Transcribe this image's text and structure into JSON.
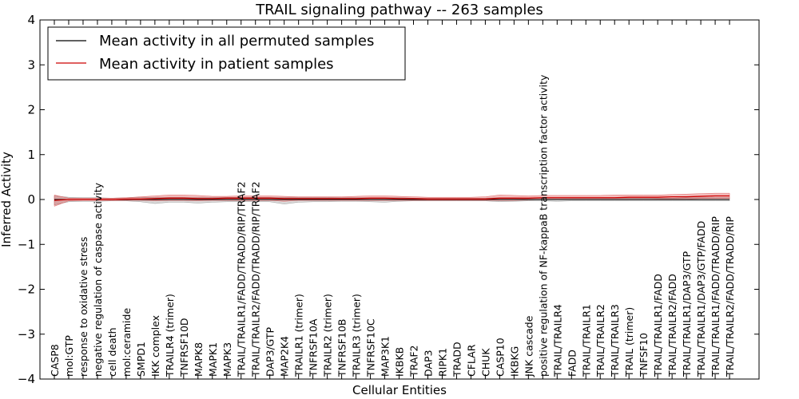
{
  "chart_data": {
    "type": "line",
    "title": "TRAIL signaling pathway -- 263 samples",
    "xlabel": "Cellular Entities",
    "ylabel": "Inferred Activity",
    "ylim": [
      -4,
      4
    ],
    "yticks": [
      -4,
      -3,
      -2,
      -1,
      0,
      1,
      2,
      3,
      4
    ],
    "ytick_labels": [
      "−4",
      "−3",
      "−2",
      "−1",
      "0",
      "1",
      "2",
      "3",
      "4"
    ],
    "grid": false,
    "legend_position": "top-left",
    "categories": [
      "CASP8",
      "mol:GTP",
      "response to oxidative stress",
      "negative regulation of caspase activity",
      "cell death",
      "mol:ceramide",
      "SMPD1",
      "IKK complex",
      "TRAILR4 (trimer)",
      "TNFRSF10D",
      "MAPK8",
      "MAPK1",
      "MAPK3",
      "TRAIL/TRAILR1/FADD/TRADD/RIP/TRAF2",
      "TRAIL/TRAILR2/FADD/TRADD/RIP/TRAF2",
      "DAP3/GTP",
      "MAP2K4",
      "TRAILR1 (trimer)",
      "TNFRSF10A",
      "TRAILR2 (trimer)",
      "TNFRSF10B",
      "TRAILR3 (trimer)",
      "TNFRSF10C",
      "MAP3K1",
      "IKBKB",
      "TRAF2",
      "DAP3",
      "RIPK1",
      "TRADD",
      "CFLAR",
      "CHUK",
      "CASP10",
      "IKBKG",
      "JNK cascade",
      "positive regulation of NF-kappaB transcription factor activity",
      "TRAIL/TRAILR4",
      "FADD",
      "TRAIL/TRAILR1",
      "TRAIL/TRAILR2",
      "TRAIL/TRAILR3",
      "TRAIL (trimer)",
      "TNFSF10",
      "TRAIL/TRAILR1/FADD",
      "TRAIL/TRAILR2/FADD",
      "TRAIL/TRAILR1/DAP3/GTP",
      "TRAIL/TRAILR1/DAP3/GTP/FADD",
      "TRAIL/TRAILR1/FADD/TRADD/RIP",
      "TRAIL/TRAILR2/FADD/TRADD/RIP"
    ],
    "series": [
      {
        "name": "Mean activity in all permuted samples",
        "color": "#000000",
        "values": [
          0,
          0,
          0,
          0,
          0,
          0,
          0,
          0,
          0,
          0,
          0,
          0,
          0,
          0,
          0,
          0,
          0,
          0,
          0,
          0,
          0,
          0,
          0,
          0,
          0,
          0,
          0,
          0,
          0,
          0,
          0,
          0,
          0,
          0,
          0,
          0,
          0,
          0,
          0,
          0,
          0,
          0,
          0,
          0,
          0,
          0,
          0,
          0
        ],
        "band_lower": [
          -0.12,
          -0.05,
          -0.04,
          -0.04,
          -0.03,
          -0.03,
          -0.05,
          -0.09,
          -0.06,
          -0.06,
          -0.08,
          -0.06,
          -0.05,
          -0.05,
          -0.05,
          -0.05,
          -0.1,
          -0.06,
          -0.05,
          -0.05,
          -0.04,
          -0.04,
          -0.05,
          -0.06,
          -0.04,
          -0.03,
          -0.03,
          -0.03,
          -0.03,
          -0.03,
          -0.03,
          -0.05,
          -0.04,
          -0.03,
          -0.03,
          -0.04,
          -0.03,
          -0.03,
          -0.03,
          -0.03,
          -0.03,
          -0.03,
          -0.03,
          -0.03,
          -0.03,
          -0.03,
          -0.03,
          -0.03
        ],
        "band_upper": [
          0.08,
          0.05,
          0.04,
          0.04,
          0.03,
          0.04,
          0.05,
          0.05,
          0.05,
          0.05,
          0.05,
          0.05,
          0.05,
          0.05,
          0.05,
          0.05,
          0.05,
          0.05,
          0.05,
          0.05,
          0.04,
          0.04,
          0.04,
          0.04,
          0.04,
          0.03,
          0.03,
          0.03,
          0.03,
          0.03,
          0.03,
          0.04,
          0.04,
          0.03,
          0.03,
          0.04,
          0.03,
          0.03,
          0.03,
          0.03,
          0.03,
          0.03,
          0.03,
          0.03,
          0.04,
          0.04,
          0.04,
          0.04
        ]
      },
      {
        "name": "Mean activity in patient samples",
        "color": "#cc0000",
        "values": [
          -0.02,
          0,
          0,
          0,
          0,
          0.01,
          0.01,
          0.02,
          0.03,
          0.03,
          0.02,
          0.02,
          0.03,
          0.03,
          0.03,
          0.03,
          0.02,
          0.02,
          0.02,
          0.02,
          0.02,
          0.02,
          0.03,
          0.03,
          0.02,
          0.02,
          0.01,
          0.01,
          0.01,
          0.01,
          0.01,
          0.03,
          0.03,
          0.03,
          0.04,
          0.04,
          0.04,
          0.04,
          0.04,
          0.04,
          0.05,
          0.05,
          0.05,
          0.06,
          0.06,
          0.07,
          0.08,
          0.08
        ],
        "band_lower": [
          -0.15,
          -0.03,
          -0.02,
          -0.02,
          -0.02,
          -0.02,
          -0.02,
          -0.03,
          -0.02,
          -0.02,
          -0.03,
          -0.02,
          -0.02,
          -0.02,
          -0.02,
          -0.02,
          -0.04,
          -0.02,
          -0.02,
          -0.02,
          -0.02,
          -0.02,
          -0.02,
          -0.02,
          -0.02,
          -0.02,
          -0.02,
          -0.02,
          -0.02,
          -0.02,
          -0.02,
          -0.02,
          -0.02,
          -0.01,
          0,
          0,
          0,
          0,
          0,
          0,
          0,
          0,
          0.01,
          0.01,
          0.01,
          0.02,
          0.02,
          0.02
        ],
        "band_upper": [
          0.1,
          0.03,
          0.03,
          0.03,
          0.03,
          0.04,
          0.06,
          0.08,
          0.1,
          0.1,
          0.09,
          0.07,
          0.07,
          0.08,
          0.08,
          0.08,
          0.07,
          0.06,
          0.06,
          0.06,
          0.06,
          0.07,
          0.08,
          0.08,
          0.07,
          0.06,
          0.05,
          0.05,
          0.05,
          0.05,
          0.06,
          0.1,
          0.09,
          0.08,
          0.09,
          0.09,
          0.09,
          0.09,
          0.09,
          0.1,
          0.1,
          0.1,
          0.1,
          0.11,
          0.12,
          0.13,
          0.14,
          0.14
        ]
      }
    ]
  }
}
